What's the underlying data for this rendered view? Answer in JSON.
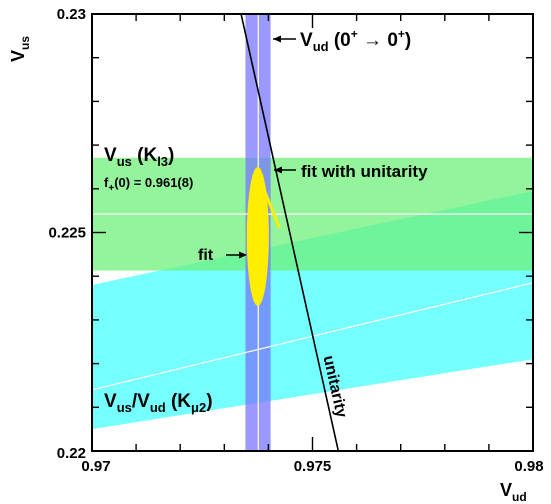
{
  "chart_data": {
    "type": "scatter",
    "xlabel_main": "V",
    "xlabel_sub": "ud",
    "ylabel_main": "V",
    "ylabel_sub": "us",
    "xlim": [
      0.97,
      0.98
    ],
    "ylim": [
      0.22,
      0.23
    ],
    "xticks": [
      {
        "value": 0.97,
        "label": "0.97"
      },
      {
        "value": 0.975,
        "label": "0.975"
      },
      {
        "value": 0.98,
        "label": "0.98"
      }
    ],
    "yticks": [
      {
        "value": 0.22,
        "label": "0.22"
      },
      {
        "value": 0.225,
        "label": "0.225"
      },
      {
        "value": 0.23,
        "label": "0.23"
      }
    ],
    "bands": {
      "vud_superallowed": {
        "x_min": 0.97348,
        "x_max": 0.97405,
        "x_center": 0.97377,
        "label_pre": "V",
        "label_sub": "ud",
        "label_post": " (0",
        "label_sup1": "+",
        "label_arrow": " → 0",
        "label_sup2": "+",
        "label_close": ")",
        "color": "#7777ff"
      },
      "vus_kl3": {
        "y_min": 0.22413,
        "y_max": 0.22671,
        "y_center": 0.22542,
        "label_pre": "V",
        "label_sub": "us",
        "label_mid": " (K",
        "label_sub2": "l3",
        "label_close": ")",
        "ff_pre": "f",
        "ff_sub": "+",
        "ff_post": "(0) = 0.961(8)",
        "color": "#6ff07a"
      },
      "vus_over_vud_kmu2": {
        "y_at_xmin_low": 0.2205,
        "y_at_xmax_low": 0.2221,
        "y_at_xmin_high": 0.2238,
        "y_at_xmax_high": 0.22595,
        "y_at_xmin_center": 0.2214,
        "y_at_xmax_center": 0.22385,
        "label_a": "V",
        "label_a_sub": "us",
        "label_b": "/V",
        "label_b_sub": "ud",
        "label_c": " (K",
        "label_c_sub": "μ2",
        "label_close": ")",
        "color": "#66ffff"
      }
    },
    "unitarity_line": {
      "label": "unitarity",
      "points": [
        [
          0.97327,
          0.2305
        ],
        [
          0.97563,
          0.2198
        ]
      ]
    },
    "fit_ellipse": {
      "label": "fit",
      "x_center": 0.97376,
      "y_center": 0.22491,
      "x_halfwidth": 0.00025,
      "y_halfheight": 0.00159,
      "color": "#ffee00"
    },
    "fit_with_unitarity": {
      "label": "fit with unitarity",
      "segment": [
        [
          0.97379,
          0.22626
        ],
        [
          0.97425,
          0.22511
        ]
      ],
      "color": "#ffee00"
    }
  }
}
